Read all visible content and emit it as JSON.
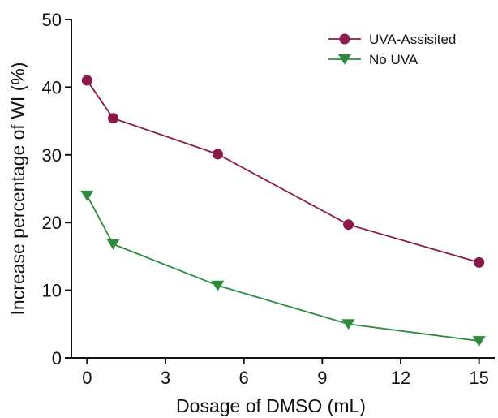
{
  "chart_data": {
    "type": "line",
    "xlabel": "Dosage of DMSO (mL)",
    "ylabel": "Increase percentage of WI (%)",
    "xlim": [
      -0.6,
      15.6
    ],
    "ylim": [
      0,
      50
    ],
    "xticks": [
      0,
      3,
      6,
      9,
      12,
      15
    ],
    "yticks": [
      0,
      10,
      20,
      30,
      40,
      50
    ],
    "x": [
      0,
      1,
      5,
      10,
      15
    ],
    "grid": false,
    "legend_position": "top-right",
    "series": [
      {
        "name": "UVA-Assisited",
        "values": [
          41.0,
          35.4,
          30.1,
          19.7,
          14.1
        ],
        "color": "#8b1a4b",
        "marker": "circle"
      },
      {
        "name": "No UVA",
        "values": [
          24.0,
          16.8,
          10.7,
          5.0,
          2.5
        ],
        "color": "#2e8b3e",
        "marker": "triangle-down"
      }
    ]
  }
}
